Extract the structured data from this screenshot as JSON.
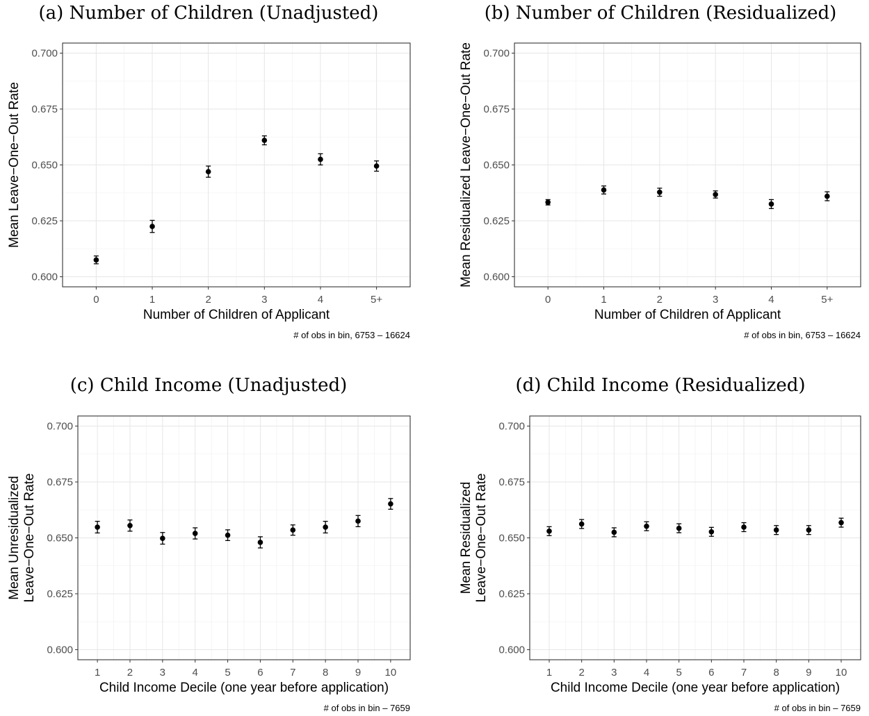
{
  "chart_data": [
    {
      "type": "scatter",
      "title": "(a) Number of Children (Unadjusted)",
      "xlabel": "Number of Children of Applicant",
      "ylabel": [
        "Mean Leave−One−Out Rate"
      ],
      "caption": "# of obs in bin,  6753 – 16624",
      "categories": [
        "0",
        "1",
        "2",
        "3",
        "4",
        "5+"
      ],
      "values": [
        0.6075,
        0.6225,
        0.647,
        0.661,
        0.6525,
        0.6495
      ],
      "ci_low": [
        0.6058,
        0.6198,
        0.6445,
        0.659,
        0.65,
        0.6472
      ],
      "ci_high": [
        0.6093,
        0.6252,
        0.6495,
        0.663,
        0.655,
        0.6518
      ],
      "yticks": [
        "0.600",
        "0.625",
        "0.650",
        "0.675",
        "0.700"
      ],
      "ylim": [
        0.5955,
        0.7045
      ],
      "grid": true,
      "error_bars": true
    },
    {
      "type": "scatter",
      "title": "(b) Number of Children (Residualized)",
      "xlabel": "Number of Children of Applicant",
      "ylabel": [
        "Mean Residualized Leave−One−Out Rate"
      ],
      "caption": "# of obs in bin,  6753 – 16624",
      "categories": [
        "0",
        "1",
        "2",
        "3",
        "4",
        "5+"
      ],
      "values": [
        0.6333,
        0.6388,
        0.6378,
        0.6368,
        0.6325,
        0.636
      ],
      "ci_low": [
        0.6321,
        0.637,
        0.636,
        0.6352,
        0.6305,
        0.634
      ],
      "ci_high": [
        0.6345,
        0.6406,
        0.6396,
        0.6384,
        0.6345,
        0.638
      ],
      "yticks": [
        "0.600",
        "0.625",
        "0.650",
        "0.675",
        "0.700"
      ],
      "ylim": [
        0.5955,
        0.7045
      ],
      "grid": true,
      "error_bars": true
    },
    {
      "type": "scatter",
      "title": "(c) Child Income (Unadjusted)",
      "xlabel": "Child Income Decile (one year before application)",
      "ylabel": [
        "Mean Unresidualized",
        "Leave−One−Out Rate"
      ],
      "caption": "# of obs in bin – 7659",
      "categories": [
        "1",
        "2",
        "3",
        "4",
        "5",
        "6",
        "7",
        "8",
        "9",
        "10"
      ],
      "values": [
        0.6548,
        0.6555,
        0.6498,
        0.652,
        0.6512,
        0.648,
        0.6535,
        0.6548,
        0.6575,
        0.6652
      ],
      "ci_low": [
        0.6522,
        0.653,
        0.6472,
        0.6495,
        0.6488,
        0.6455,
        0.6512,
        0.6522,
        0.655,
        0.6628
      ],
      "ci_high": [
        0.6574,
        0.658,
        0.6524,
        0.6545,
        0.6536,
        0.6505,
        0.6558,
        0.6574,
        0.66,
        0.6676
      ],
      "yticks": [
        "0.600",
        "0.625",
        "0.650",
        "0.675",
        "0.700"
      ],
      "ylim": [
        0.5955,
        0.7045
      ],
      "grid": true,
      "error_bars": true
    },
    {
      "type": "scatter",
      "title": "(d) Child Income (Residualized)",
      "xlabel": "Child Income Decile (one year before application)",
      "ylabel": [
        "Mean Residualized",
        "Leave−One−Out Rate"
      ],
      "caption": "# of obs in bin – 7659",
      "categories": [
        "1",
        "2",
        "3",
        "4",
        "5",
        "6",
        "7",
        "8",
        "9",
        "10"
      ],
      "values": [
        0.653,
        0.6562,
        0.6525,
        0.6552,
        0.6543,
        0.6527,
        0.6548,
        0.6535,
        0.6535,
        0.6568
      ],
      "ci_low": [
        0.651,
        0.6542,
        0.6505,
        0.6532,
        0.6523,
        0.6507,
        0.6528,
        0.6515,
        0.6515,
        0.6548
      ],
      "ci_high": [
        0.655,
        0.6582,
        0.6545,
        0.6572,
        0.6563,
        0.6547,
        0.6568,
        0.6555,
        0.6555,
        0.6588
      ],
      "yticks": [
        "0.600",
        "0.625",
        "0.650",
        "0.675",
        "0.700"
      ],
      "ylim": [
        0.5955,
        0.7045
      ],
      "grid": true,
      "error_bars": true
    }
  ]
}
